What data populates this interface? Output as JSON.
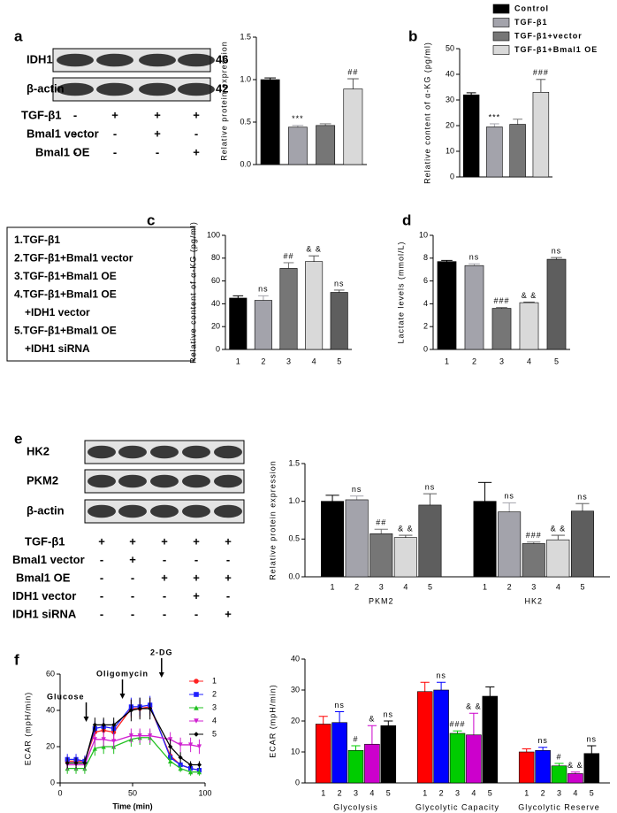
{
  "panel_labels": [
    "a",
    "b",
    "c",
    "d",
    "e",
    "f"
  ],
  "blot_a": {
    "rows": [
      {
        "label": "IDH1",
        "size": 46
      },
      {
        "label": "β-actin",
        "size": 42
      }
    ],
    "treatments": [
      {
        "label": "TGF-β1",
        "signs": [
          "-",
          "+",
          "+",
          "+"
        ]
      },
      {
        "label": "Bmal1 vector",
        "signs": [
          "-",
          "-",
          "+",
          "-"
        ]
      },
      {
        "label": "Bmal1 OE",
        "signs": [
          "-",
          "-",
          "-",
          "+"
        ]
      }
    ]
  },
  "legend_c": [
    "1.TGF-β1",
    "2.TGF-β1+Bmal1 vector",
    "3.TGF-β1+Bmal1 OE",
    "4.TGF-β1+Bmal1 OE",
    "+IDH1 vector",
    "5.TGF-β1+Bmal1 OE",
    "+IDH1 siRNA"
  ],
  "blot_e": {
    "rows": [
      {
        "label": "HK2"
      },
      {
        "label": "PKM2"
      },
      {
        "label": "β-actin"
      }
    ],
    "treatments": [
      {
        "label": "TGF-β1",
        "signs": [
          "+",
          "+",
          "+",
          "+",
          "+"
        ]
      },
      {
        "label": "Bmal1 vector",
        "signs": [
          "-",
          "+",
          "-",
          "-",
          "-"
        ]
      },
      {
        "label": "Bmal1 OE",
        "signs": [
          "-",
          "-",
          "+",
          "+",
          "+"
        ]
      },
      {
        "label": "IDH1 vector",
        "signs": [
          "-",
          "-",
          "-",
          "+",
          "-"
        ]
      },
      {
        "label": "IDH1 siRNA",
        "signs": [
          "-",
          "-",
          "-",
          "-",
          "+"
        ]
      }
    ]
  },
  "chart_data": [
    {
      "type": "bar",
      "ylabel": "Relative protein expression",
      "values": [
        1.0,
        0.44,
        0.46,
        0.89
      ],
      "errors": [
        0.02,
        0.02,
        0.02,
        0.12
      ],
      "colors": [
        "#000000",
        "#a3a3ab",
        "#767676",
        "#d9d9d9"
      ],
      "annotations": [
        {
          "index": 1,
          "text": "***"
        },
        {
          "index": 3,
          "text": "##"
        }
      ],
      "ylim": [
        0,
        1.5
      ],
      "yticks": [
        {
          "value": 0,
          "label": "0.0"
        },
        0.5,
        {
          "value": 1,
          "label": "1.0"
        },
        1.5
      ]
    },
    {
      "type": "bar",
      "ylabel": "Relative content of α-KG (pg/ml)",
      "values": [
        32,
        19.5,
        20.5,
        33
      ],
      "errors": [
        0.8,
        1.2,
        2,
        5
      ],
      "colors": [
        "#000000",
        "#a3a3ab",
        "#767676",
        "#d9d9d9"
      ],
      "annotations": [
        {
          "index": 1,
          "text": "***"
        },
        {
          "index": 3,
          "text": "###"
        }
      ],
      "legend": [
        {
          "name": "Control",
          "color": "#000000"
        },
        {
          "name": "TGF-β1",
          "color": "#a3a3ab"
        },
        {
          "name": "TGF-β1+vector",
          "color": "#767676"
        },
        {
          "name": "TGF-β1+Bmal1 OE",
          "color": "#d9d9d9"
        }
      ],
      "ylim": [
        0,
        50
      ],
      "yticks": [
        0,
        10,
        20,
        30,
        40,
        50
      ]
    },
    {
      "type": "bar",
      "ylabel": "Relative content of α-KG (pg/ml)",
      "categories": [
        "1",
        "2",
        "3",
        "4",
        "5"
      ],
      "values": [
        45,
        43,
        71,
        77,
        50
      ],
      "errors": [
        2,
        4,
        5,
        5,
        2
      ],
      "colors": [
        "#000000",
        "#a3a3ab",
        "#767676",
        "#d9d9d9",
        "#5e5e5e"
      ],
      "annotations": [
        {
          "index": 1,
          "text": "ns"
        },
        {
          "index": 2,
          "text": "##"
        },
        {
          "index": 3,
          "text": "& &"
        },
        {
          "index": 4,
          "text": "ns"
        }
      ],
      "ylim": [
        0,
        100
      ],
      "yticks": [
        0,
        20,
        40,
        60,
        80,
        100
      ]
    },
    {
      "type": "bar",
      "ylabel": "Lactate levels (mmol/L)",
      "categories": [
        "1",
        "2",
        "3",
        "4",
        "5"
      ],
      "values": [
        7.7,
        7.35,
        3.6,
        4.1,
        7.9
      ],
      "errors": [
        0.1,
        0.15,
        0.08,
        0.05,
        0.15
      ],
      "colors": [
        "#000000",
        "#a3a3ab",
        "#767676",
        "#d9d9d9",
        "#5e5e5e"
      ],
      "annotations": [
        {
          "index": 1,
          "text": "ns"
        },
        {
          "index": 2,
          "text": "###"
        },
        {
          "index": 3,
          "text": "& &"
        },
        {
          "index": 4,
          "text": "ns"
        }
      ],
      "ylim": [
        0,
        10
      ],
      "yticks": [
        0,
        2,
        4,
        6,
        8,
        10
      ]
    },
    {
      "type": "grouped_bar",
      "ylabel": "Relative protein expression",
      "categories": [
        "1",
        "2",
        "3",
        "4",
        "5"
      ],
      "colors": [
        "#000000",
        "#a3a3ab",
        "#767676",
        "#d9d9d9",
        "#5e5e5e"
      ],
      "groups": [
        {
          "name": "PKM2",
          "values": [
            1.0,
            1.02,
            0.57,
            0.52,
            0.95
          ],
          "errors": [
            0.08,
            0.05,
            0.06,
            0.03,
            0.15
          ],
          "annotations": [
            {
              "index": 1,
              "text": "ns"
            },
            {
              "index": 2,
              "text": "##"
            },
            {
              "index": 3,
              "text": "& &"
            },
            {
              "index": 4,
              "text": "ns"
            }
          ]
        },
        {
          "name": "HK2",
          "values": [
            1.0,
            0.86,
            0.44,
            0.49,
            0.87
          ],
          "errors": [
            0.25,
            0.12,
            0.02,
            0.06,
            0.1
          ],
          "annotations": [
            {
              "index": 1,
              "text": "ns"
            },
            {
              "index": 2,
              "text": "###"
            },
            {
              "index": 3,
              "text": "& &"
            },
            {
              "index": 4,
              "text": "ns"
            }
          ]
        }
      ],
      "ylim": [
        0,
        1.5
      ],
      "yticks": [
        {
          "value": 0,
          "label": "0.0"
        },
        0.5,
        {
          "value": 1,
          "label": "1.0"
        },
        1.5
      ]
    },
    {
      "type": "line",
      "xlabel": "Time (min)",
      "ylabel": "ECAR (mpH/min)",
      "x": [
        5,
        11,
        17,
        24,
        30,
        37,
        49,
        55,
        62,
        76,
        83,
        90,
        96
      ],
      "series": [
        {
          "name": "1",
          "color": "#ff2020",
          "marker": "circle",
          "values": [
            12,
            12,
            12,
            28,
            29,
            28,
            41,
            41,
            42,
            15,
            10,
            8,
            7
          ],
          "errors": [
            3,
            3,
            3,
            4,
            4,
            4,
            5,
            5,
            5,
            3,
            2,
            2,
            2
          ]
        },
        {
          "name": "2",
          "color": "#2020ff",
          "marker": "square",
          "values": [
            13,
            13,
            12,
            30,
            31,
            30,
            42,
            42,
            43,
            14,
            10,
            8,
            7
          ],
          "errors": [
            3,
            3,
            3,
            4,
            4,
            4,
            5,
            5,
            5,
            3,
            2,
            2,
            2
          ]
        },
        {
          "name": "3",
          "color": "#20c020",
          "marker": "triangle",
          "values": [
            8,
            8,
            8,
            19,
            20,
            20,
            24,
            25,
            25,
            12,
            8,
            6,
            6
          ],
          "errors": [
            3,
            3,
            3,
            4,
            4,
            4,
            4,
            4,
            4,
            3,
            2,
            2,
            2
          ]
        },
        {
          "name": "4",
          "color": "#d020d0",
          "marker": "triangle-down",
          "values": [
            10,
            10,
            10,
            24,
            24,
            23,
            26,
            26,
            26,
            24,
            21,
            21,
            20
          ],
          "errors": [
            3,
            3,
            3,
            4,
            4,
            4,
            4,
            4,
            4,
            4,
            4,
            4,
            4
          ]
        },
        {
          "name": "5",
          "color": "#000000",
          "marker": "diamond",
          "values": [
            11,
            11,
            11,
            32,
            32,
            32,
            40,
            41,
            41,
            20,
            14,
            10,
            10
          ],
          "errors": [
            3,
            3,
            3,
            4,
            4,
            4,
            6,
            6,
            6,
            4,
            3,
            2,
            2
          ]
        }
      ],
      "annotations": [
        {
          "x": 18,
          "text": "Glucose"
        },
        {
          "x": 43,
          "text": "Oligomycin"
        },
        {
          "x": 70,
          "text": "2-DG"
        }
      ],
      "xlim": [
        0,
        100
      ],
      "xticks": [
        0,
        50,
        100
      ],
      "ylim": [
        0,
        60
      ],
      "yticks": [
        0,
        20,
        40,
        60
      ]
    },
    {
      "type": "grouped_bar",
      "ylabel": "ECAR (mpH/min)",
      "categories": [
        "1",
        "2",
        "3",
        "4",
        "5"
      ],
      "colors": [
        "#ff0000",
        "#0000ff",
        "#00cc00",
        "#cc00cc",
        "#000000"
      ],
      "groups": [
        {
          "name": "Glycolysis",
          "values": [
            19,
            19.5,
            10.5,
            12.5,
            18.5
          ],
          "errors": [
            2.5,
            3.5,
            1.5,
            6,
            1.5
          ],
          "annotations": [
            {
              "index": 1,
              "text": "ns"
            },
            {
              "index": 2,
              "text": "#"
            },
            {
              "index": 3,
              "text": "&"
            },
            {
              "index": 4,
              "text": "ns"
            }
          ]
        },
        {
          "name": "Glycolytic Capacity",
          "values": [
            29.5,
            30,
            16,
            15.5,
            28
          ],
          "errors": [
            3,
            2.5,
            0.8,
            7,
            3
          ],
          "annotations": [
            {
              "index": 1,
              "text": "ns"
            },
            {
              "index": 2,
              "text": "###"
            },
            {
              "index": 3,
              "text": "& &"
            }
          ]
        },
        {
          "name": "Glycolytic Reserve",
          "values": [
            10,
            10.5,
            5.5,
            3,
            9.5
          ],
          "errors": [
            1,
            1,
            0.8,
            0.5,
            2.5
          ],
          "annotations": [
            {
              "index": 1,
              "text": "ns"
            },
            {
              "index": 2,
              "text": "#"
            },
            {
              "index": 3,
              "text": "& &"
            },
            {
              "index": 4,
              "text": "ns"
            }
          ]
        }
      ],
      "ylim": [
        0,
        40
      ],
      "yticks": [
        0,
        10,
        20,
        30,
        40
      ]
    }
  ]
}
